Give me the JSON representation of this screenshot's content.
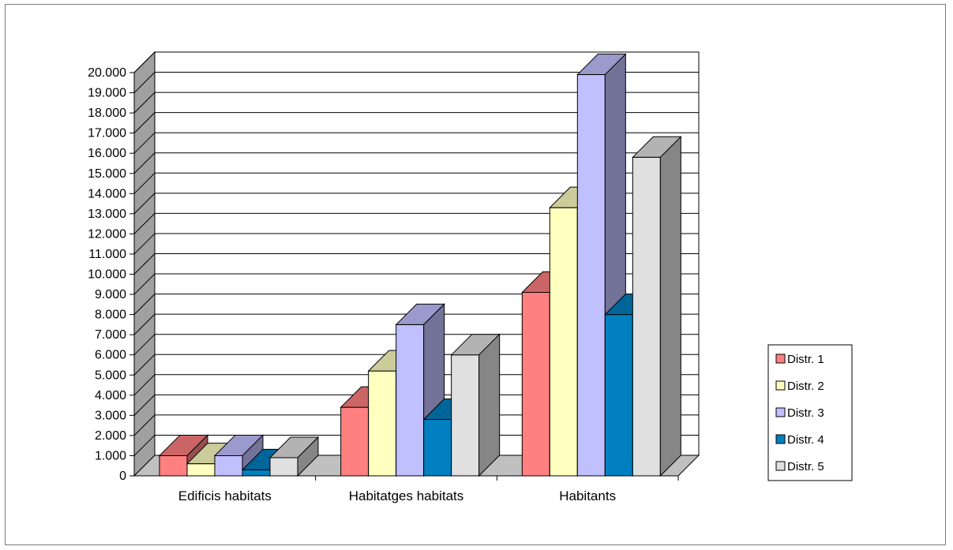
{
  "chart_data": {
    "type": "bar",
    "title": "",
    "xlabel": "",
    "ylabel": "",
    "ylim": [
      0,
      20000
    ],
    "grid": true,
    "legend_position": "right",
    "categories": [
      "Edificis habitats",
      "Habitatges habitats",
      "Habitants"
    ],
    "y_ticks": [
      0,
      1000,
      2000,
      3000,
      4000,
      5000,
      6000,
      7000,
      8000,
      9000,
      10000,
      11000,
      12000,
      13000,
      14000,
      15000,
      16000,
      17000,
      18000,
      19000,
      20000
    ],
    "y_tick_labels": [
      "0",
      "1.000",
      "2.000",
      "3.000",
      "4.000",
      "5.000",
      "6.000",
      "7.000",
      "8.000",
      "9.000",
      "10.000",
      "11.000",
      "12.000",
      "13.000",
      "14.000",
      "15.000",
      "16.000",
      "17.000",
      "18.000",
      "19.000",
      "20.000"
    ],
    "series": [
      {
        "name": "Distr. 1",
        "values": [
          1000,
          3400,
          9100
        ],
        "color": "#ff8080"
      },
      {
        "name": "Distr. 2",
        "values": [
          600,
          5200,
          13300
        ],
        "color": "#ffffc0"
      },
      {
        "name": "Distr. 3",
        "values": [
          1000,
          7500,
          19900
        ],
        "color": "#c0c0ff"
      },
      {
        "name": "Distr. 4",
        "values": [
          300,
          2800,
          8000
        ],
        "color": "#0080c0"
      },
      {
        "name": "Distr. 5",
        "values": [
          900,
          6000,
          15800
        ],
        "color": "#e0e0e0"
      }
    ]
  }
}
